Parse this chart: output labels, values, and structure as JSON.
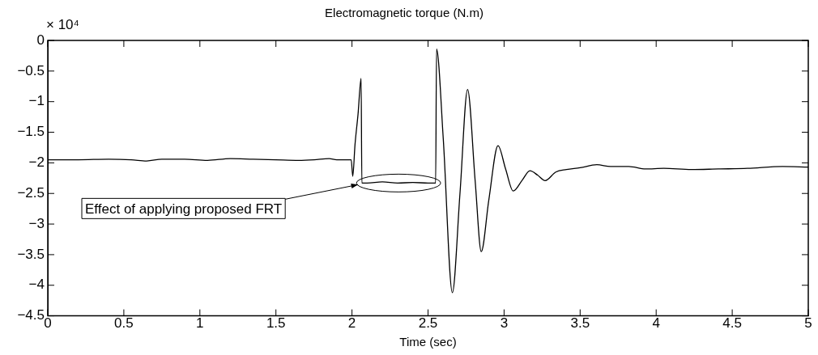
{
  "chart_data": {
    "type": "line",
    "title": "Electromagnetic torque (N.m)",
    "xlabel": "Time (sec)",
    "annotations": [
      "× 10⁴",
      {
        "text": "Effect of applying proposed FRT",
        "x": 2.04,
        "y": -2.33
      }
    ],
    "series": [
      {
        "color": "#000000",
        "x": [
          0,
          0.2,
          0.4,
          0.55,
          0.65,
          0.75,
          0.9,
          1.05,
          1.2,
          1.35,
          1.5,
          1.65,
          1.75,
          1.85,
          1.9,
          1.995,
          2.005,
          2.02,
          2.04,
          2.06,
          2.065,
          2.1,
          2.2,
          2.3,
          2.4,
          2.5,
          2.55,
          2.556,
          2.6,
          2.66,
          2.71,
          2.76,
          2.81,
          2.85,
          2.9,
          2.96,
          3.01,
          3.06,
          3.12,
          3.17,
          3.22,
          3.27,
          3.34,
          3.41,
          3.5,
          3.61,
          3.7,
          3.82,
          3.93,
          4.05,
          4.23,
          4.41,
          4.6,
          4.83,
          5
        ],
        "values": [
          -1.95,
          -1.95,
          -1.94,
          -1.95,
          -1.97,
          -1.94,
          -1.94,
          -1.96,
          -1.93,
          -1.94,
          -1.95,
          -1.96,
          -1.95,
          -1.93,
          -1.95,
          -1.95,
          -2.22,
          -1.7,
          -1.2,
          -0.62,
          -2.33,
          -2.33,
          -2.31,
          -2.33,
          -2.32,
          -2.33,
          -2.33,
          -0.14,
          -1.6,
          -4.12,
          -2.5,
          -0.8,
          -2.3,
          -3.45,
          -2.6,
          -1.72,
          -2.1,
          -2.46,
          -2.28,
          -2.13,
          -2.2,
          -2.29,
          -2.15,
          -2.11,
          -2.08,
          -2.03,
          -2.06,
          -2.06,
          -2.1,
          -2.09,
          -2.11,
          -2.1,
          -2.09,
          -2.06,
          -2.07
        ]
      }
    ],
    "xlim": [
      0,
      5
    ],
    "xticks": [
      0,
      0.5,
      1,
      1.5,
      2,
      2.5,
      3,
      3.5,
      4,
      4.5,
      5
    ],
    "ylim": [
      -4.5,
      0
    ],
    "yticks": [
      {
        "value": -4.5,
        "label": "−4.5"
      },
      {
        "value": -4,
        "label": "−4"
      },
      {
        "value": -3.5,
        "label": "−3.5"
      },
      {
        "value": -3,
        "label": "−3"
      },
      {
        "value": -2.5,
        "label": "−2.5"
      },
      {
        "value": -2,
        "label": "−2"
      },
      {
        "value": -1.5,
        "label": "−1.5"
      },
      {
        "value": -1,
        "label": "−1"
      },
      {
        "value": -0.5,
        "label": "−0.5"
      },
      0
    ],
    "marker": "none",
    "line_style": "solid",
    "legend": false
  }
}
